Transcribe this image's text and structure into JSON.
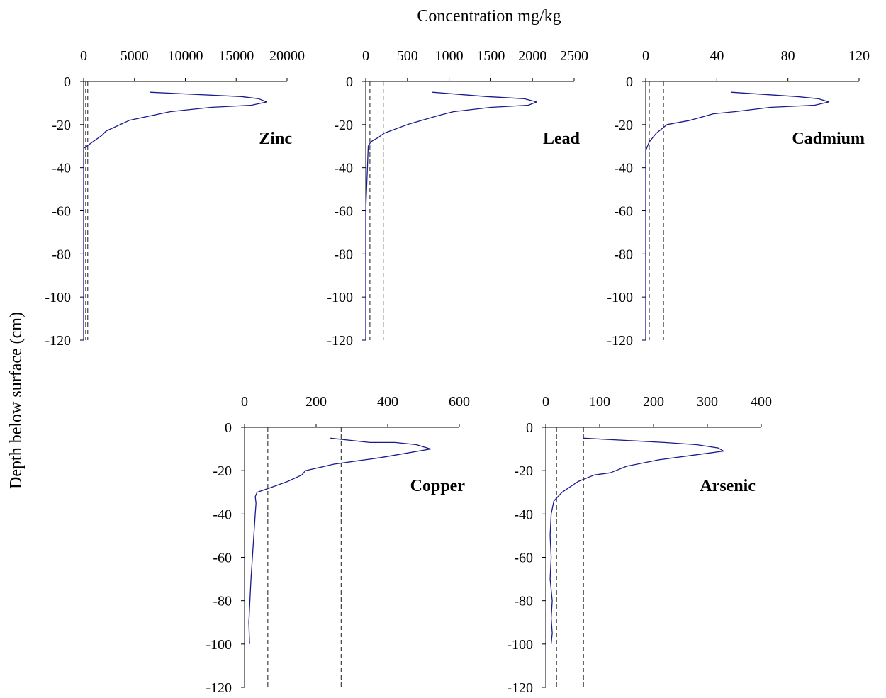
{
  "figure": {
    "xlabel": "Concentration mg/kg",
    "ylabel": "Depth below surface (cm)",
    "colors": {
      "profile": "#1a1a8c",
      "guideline": "#404040",
      "axis": "#000000"
    }
  },
  "chart_data": [
    {
      "type": "line",
      "name": "Zinc",
      "xlim": [
        0,
        20000
      ],
      "xticks": [
        "0",
        "5000",
        "10000",
        "15000",
        "20000"
      ],
      "ylim": [
        -120,
        0
      ],
      "yticks": [
        "0",
        "-20",
        "-40",
        "-60",
        "-80",
        "-100",
        "-120"
      ],
      "guidelines": [
        200,
        400
      ],
      "series": [
        {
          "x": [
            6500,
            15500,
            17200,
            18000,
            16500,
            12500,
            8500,
            7500,
            4500,
            2200,
            1800,
            900,
            300,
            0,
            0,
            0,
            0
          ],
          "y": [
            -5,
            -7,
            -8,
            -9.5,
            -11,
            -12,
            -14,
            -15,
            -18,
            -23,
            -25,
            -28,
            -30,
            -31,
            -40,
            -60,
            -120
          ]
        }
      ]
    },
    {
      "type": "line",
      "name": "Lead",
      "xlim": [
        0,
        2500
      ],
      "xticks": [
        "0",
        "500",
        "1000",
        "1500",
        "2000",
        "2500"
      ],
      "ylim": [
        -120,
        0
      ],
      "yticks": [
        "0",
        "-20",
        "-40",
        "-60",
        "-80",
        "-100",
        "-120"
      ],
      "guidelines": [
        50,
        210
      ],
      "series": [
        {
          "x": [
            800,
            1450,
            1900,
            2050,
            1950,
            1500,
            1050,
            850,
            500,
            220,
            150,
            60,
            30,
            20,
            0,
            0
          ],
          "y": [
            -5,
            -7,
            -8,
            -9.5,
            -11,
            -12,
            -14,
            -16,
            -20,
            -24,
            -26,
            -28,
            -30,
            -40,
            -60,
            -120
          ]
        }
      ]
    },
    {
      "type": "line",
      "name": "Cadmium",
      "xlim": [
        0,
        120
      ],
      "xticks": [
        "0",
        "40",
        "80",
        "120"
      ],
      "ylim": [
        -120,
        0
      ],
      "yticks": [
        "0",
        "-20",
        "-40",
        "-60",
        "-80",
        "-100",
        "-120"
      ],
      "guidelines": [
        2,
        10
      ],
      "series": [
        {
          "x": [
            48,
            85,
            97,
            103,
            95,
            70,
            50,
            38,
            25,
            12,
            6,
            2,
            0,
            0,
            0
          ],
          "y": [
            -5,
            -7,
            -8,
            -9.5,
            -11,
            -12,
            -14,
            -15,
            -18,
            -20,
            -24,
            -28,
            -32,
            -40,
            -120
          ]
        }
      ]
    },
    {
      "type": "line",
      "name": "Copper",
      "xlim": [
        0,
        600
      ],
      "xticks": [
        "0",
        "200",
        "400",
        "600"
      ],
      "ylim": [
        -120,
        0
      ],
      "yticks": [
        "0",
        "-20",
        "-40",
        "-60",
        "-80",
        "-100",
        "-120"
      ],
      "guidelines": [
        65,
        270
      ],
      "series": [
        {
          "x": [
            240,
            350,
            420,
            480,
            520,
            380,
            250,
            170,
            160,
            120,
            70,
            35,
            30,
            32,
            30,
            26,
            22,
            18,
            15,
            12,
            14
          ],
          "y": [
            -5,
            -7,
            -7,
            -8,
            -10,
            -14,
            -17,
            -20,
            -22,
            -25,
            -28,
            -30,
            -32,
            -35,
            -40,
            -50,
            -60,
            -70,
            -80,
            -90,
            -100
          ]
        }
      ]
    },
    {
      "type": "line",
      "name": "Arsenic",
      "xlim": [
        0,
        400
      ],
      "xticks": [
        "0",
        "100",
        "200",
        "300",
        "400"
      ],
      "ylim": [
        -120,
        0
      ],
      "yticks": [
        "0",
        "-20",
        "-40",
        "-60",
        "-80",
        "-100",
        "-120"
      ],
      "guidelines": [
        20,
        70
      ],
      "series": [
        {
          "x": [
            70,
            220,
            280,
            320,
            330,
            300,
            210,
            150,
            120,
            90,
            60,
            30,
            15,
            10,
            8,
            10,
            8,
            12,
            10,
            12,
            10
          ],
          "y": [
            -5,
            -7,
            -8,
            -9.5,
            -11,
            -12,
            -15,
            -18,
            -21,
            -22,
            -25,
            -30,
            -34,
            -40,
            -50,
            -60,
            -70,
            -80,
            -88,
            -95,
            -100
          ]
        }
      ]
    }
  ]
}
